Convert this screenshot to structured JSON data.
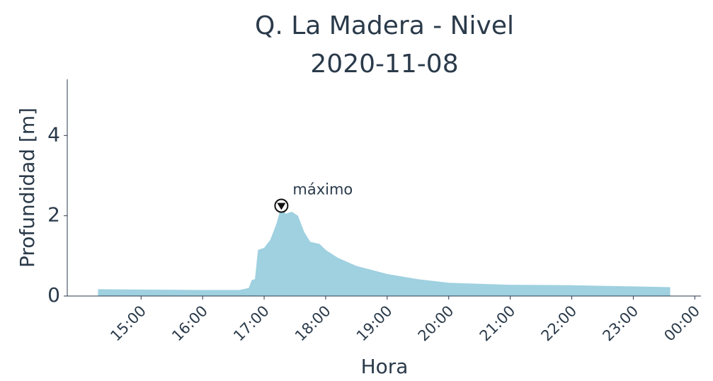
{
  "chart_data": {
    "type": "area",
    "title": "Q. La Madera - Nivel",
    "subtitle": "2020-11-08",
    "x_label": "Hora",
    "y_label": "Profundidad [m]",
    "x": [
      14.3,
      15,
      16,
      16.6,
      16.75,
      16.8,
      16.85,
      16.9,
      17.0,
      17.1,
      17.2,
      17.28,
      17.35,
      17.45,
      17.55,
      17.65,
      17.75,
      17.9,
      18.0,
      18.2,
      18.5,
      19.0,
      19.5,
      20.0,
      21,
      22,
      23,
      23.6
    ],
    "series": [
      {
        "name": "Nivel",
        "color": "#9fd1e0",
        "values": [
          0.17,
          0.16,
          0.15,
          0.15,
          0.2,
          0.4,
          0.42,
          1.15,
          1.2,
          1.4,
          1.8,
          2.25,
          2.05,
          2.1,
          2.0,
          1.6,
          1.35,
          1.3,
          1.15,
          0.95,
          0.75,
          0.55,
          0.42,
          0.33,
          0.28,
          0.27,
          0.24,
          0.22
        ]
      }
    ],
    "annotation": {
      "text": "máximo",
      "x": 17.28,
      "y": 2.25
    },
    "xlim": [
      13.8,
      24.1
    ],
    "xticks": [
      {
        "value": 15,
        "label": "15:00"
      },
      {
        "value": 16,
        "label": "16:00"
      },
      {
        "value": 17,
        "label": "17:00"
      },
      {
        "value": 18,
        "label": "18:00"
      },
      {
        "value": 19,
        "label": "19:00"
      },
      {
        "value": 20,
        "label": "20:00"
      },
      {
        "value": 21,
        "label": "21:00"
      },
      {
        "value": 22,
        "label": "22:00"
      },
      {
        "value": 23,
        "label": "23:00"
      },
      {
        "value": 24,
        "label": "00:00"
      }
    ],
    "ylim": [
      0,
      5.4
    ],
    "yticks": [
      0,
      2,
      4
    ],
    "grid": false
  }
}
